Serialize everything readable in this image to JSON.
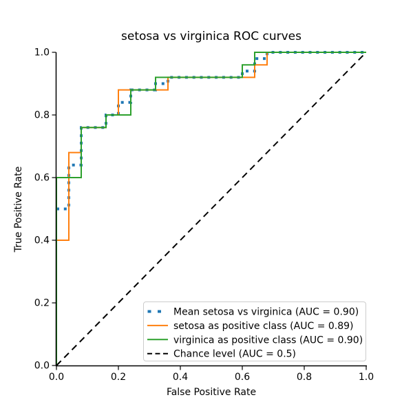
{
  "figure": {
    "title": "setosa vs virginica ROC curves"
  },
  "chart_data": {
    "type": "line",
    "title": "setosa vs virginica ROC curves",
    "xlabel": "False Positive Rate",
    "ylabel": "True Positive Rate",
    "xlim": [
      0.0,
      1.0
    ],
    "ylim": [
      0.0,
      1.0
    ],
    "xticks": [
      0.0,
      0.2,
      0.4,
      0.6,
      0.8,
      1.0
    ],
    "yticks": [
      0.0,
      0.2,
      0.4,
      0.6,
      0.8,
      1.0
    ],
    "grid": false,
    "legend": {
      "position": "lower right",
      "entries": [
        "Mean setosa vs virginica (AUC = 0.90)",
        "setosa as positive class (AUC = 0.89)",
        "virginica as positive class (AUC = 0.90)",
        "Chance level (AUC = 0.5)"
      ]
    },
    "series": [
      {
        "name": "mean-setosa-vs-virginica",
        "label": "Mean setosa vs virginica (AUC = 0.90)",
        "auc": "0.90",
        "color": "#1f77b4",
        "line_style": "dotted",
        "line_width": 4,
        "points": [
          [
            0,
            0.5
          ],
          [
            0.04,
            0.5
          ],
          [
            0.04,
            0.64
          ],
          [
            0.08,
            0.64
          ],
          [
            0.08,
            0.76
          ],
          [
            0.16,
            0.76
          ],
          [
            0.16,
            0.8
          ],
          [
            0.2,
            0.8
          ],
          [
            0.2,
            0.84
          ],
          [
            0.24,
            0.84
          ],
          [
            0.24,
            0.88
          ],
          [
            0.32,
            0.88
          ],
          [
            0.32,
            0.9
          ],
          [
            0.36,
            0.9
          ],
          [
            0.36,
            0.92
          ],
          [
            0.6,
            0.92
          ],
          [
            0.6,
            0.94
          ],
          [
            0.64,
            0.94
          ],
          [
            0.64,
            0.98
          ],
          [
            0.68,
            0.98
          ],
          [
            0.68,
            1.0
          ],
          [
            1.0,
            1.0
          ]
        ]
      },
      {
        "name": "setosa-as-positive-class",
        "label": "setosa as positive class (AUC = 0.89)",
        "auc": "0.89",
        "color": "#ff7f0e",
        "line_style": "solid",
        "line_width": 2,
        "points": [
          [
            0,
            0
          ],
          [
            0,
            0.4
          ],
          [
            0.04,
            0.4
          ],
          [
            0.04,
            0.68
          ],
          [
            0.08,
            0.68
          ],
          [
            0.08,
            0.76
          ],
          [
            0.16,
            0.76
          ],
          [
            0.16,
            0.8
          ],
          [
            0.2,
            0.8
          ],
          [
            0.2,
            0.88
          ],
          [
            0.36,
            0.88
          ],
          [
            0.36,
            0.92
          ],
          [
            0.64,
            0.92
          ],
          [
            0.64,
            0.96
          ],
          [
            0.68,
            0.96
          ],
          [
            0.68,
            1.0
          ],
          [
            1.0,
            1.0
          ]
        ]
      },
      {
        "name": "virginica-as-positive-class",
        "label": "virginica as positive class (AUC = 0.90)",
        "auc": "0.90",
        "color": "#2ca02c",
        "line_style": "solid",
        "line_width": 2,
        "points": [
          [
            0,
            0
          ],
          [
            0,
            0.6
          ],
          [
            0.08,
            0.6
          ],
          [
            0.08,
            0.76
          ],
          [
            0.16,
            0.76
          ],
          [
            0.16,
            0.8
          ],
          [
            0.24,
            0.8
          ],
          [
            0.24,
            0.88
          ],
          [
            0.32,
            0.88
          ],
          [
            0.32,
            0.92
          ],
          [
            0.6,
            0.92
          ],
          [
            0.6,
            0.96
          ],
          [
            0.64,
            0.96
          ],
          [
            0.64,
            1.0
          ],
          [
            1.0,
            1.0
          ]
        ]
      },
      {
        "name": "chance-level",
        "label": "Chance level (AUC = 0.5)",
        "auc": "0.5",
        "color": "#000000",
        "line_style": "dashed",
        "line_width": 2,
        "points": [
          [
            0,
            0
          ],
          [
            1,
            1
          ]
        ]
      }
    ]
  }
}
